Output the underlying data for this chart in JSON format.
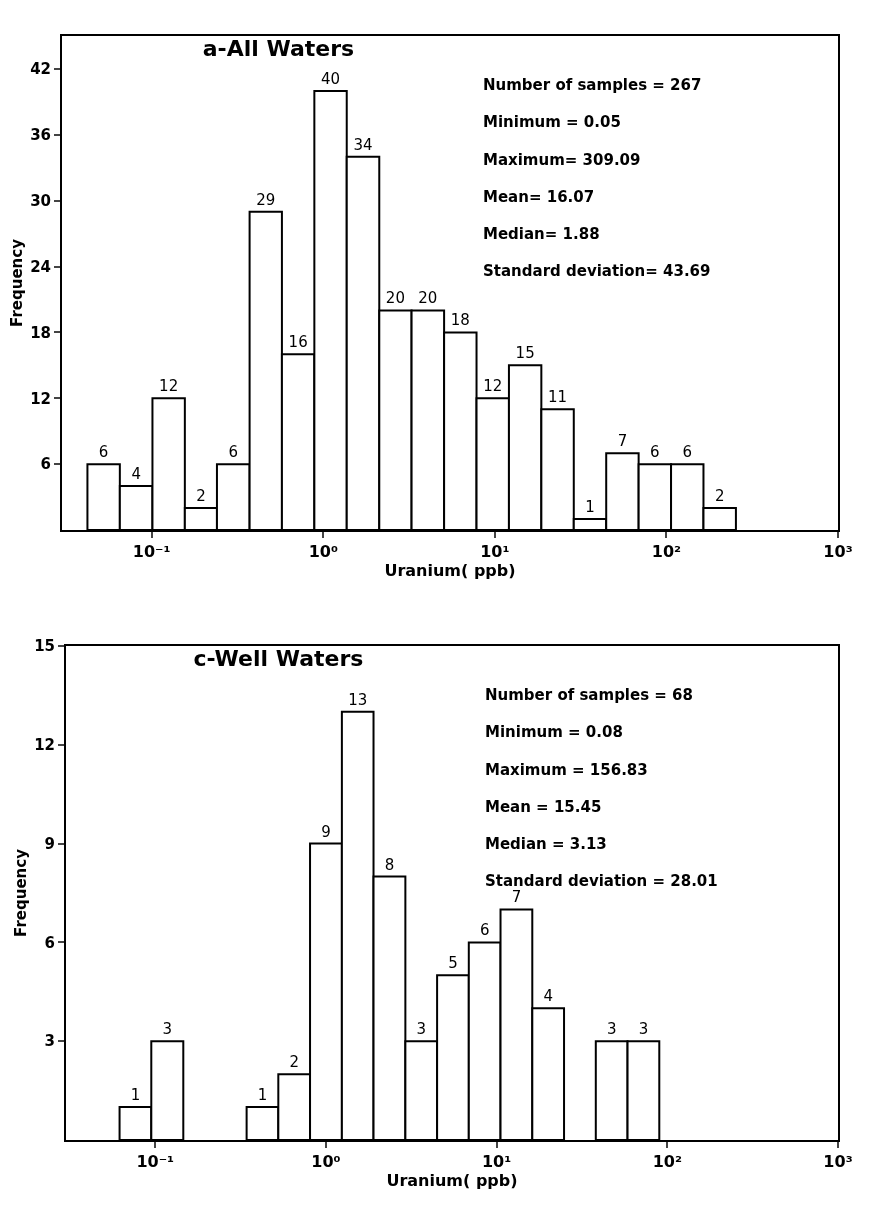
{
  "chart_data": [
    {
      "type": "histogram",
      "title": "a-All Waters",
      "xlabel": "Uranium( ppb)",
      "ylabel": "Frequency",
      "log": "x",
      "color": "#ffffff",
      "bins": [
        0.0422,
        0.0652,
        0.101,
        0.156,
        0.24,
        0.372,
        0.574,
        0.887,
        1.37,
        2.12,
        3.27,
        5.06,
        7.82,
        12.08,
        18.66,
        28.84,
        44.57,
        68.87,
        106.4,
        164.4,
        254.1
      ],
      "values": [
        6,
        4,
        12,
        2,
        6,
        29,
        16,
        40,
        34,
        20,
        20,
        18,
        12,
        15,
        11,
        1,
        7,
        6,
        6,
        2
      ],
      "data_labels": true,
      "xlim": [
        0.03,
        1000
      ],
      "ylim": [
        0,
        45
      ],
      "xticks": [
        {
          "value": 0.1,
          "label": "10⁻¹"
        },
        {
          "value": 1,
          "label": "10⁰"
        },
        {
          "value": 10,
          "label": "10¹"
        },
        {
          "value": 100,
          "label": "10²"
        },
        {
          "value": 1000,
          "label": "10³"
        }
      ],
      "yticks": [
        6,
        12,
        18,
        24,
        30,
        36,
        42
      ],
      "annotations": [
        "Number of samples = 267",
        "Minimum = 0.05",
        "Maximum= 309.09",
        "Mean= 16.07",
        "Median= 1.88",
        "Standard deviation= 43.69"
      ]
    },
    {
      "type": "histogram",
      "title": "c-Well Waters",
      "xlabel": "Uranium( ppb)",
      "ylabel": "Frequency",
      "log": "x",
      "color": "#ffffff",
      "bins": [
        0.0618,
        0.0948,
        0.146,
        0.223,
        0.343,
        0.526,
        0.807,
        1.24,
        1.9,
        2.92,
        4.48,
        6.87,
        10.54,
        16.18,
        24.83,
        38.11,
        58.48,
        89.74
      ],
      "values": [
        1,
        3,
        null,
        null,
        1,
        2,
        9,
        13,
        8,
        3,
        5,
        6,
        7,
        4,
        null,
        3,
        3
      ],
      "value_labels": [
        "1",
        "3",
        null,
        null,
        "1",
        "2",
        "9",
        "13",
        "8",
        "3",
        "5",
        "6",
        "7",
        "4",
        null,
        "3",
        "3"
      ],
      "xlim": [
        0.03,
        1000
      ],
      "ylim": [
        0,
        15
      ],
      "xticks": [
        {
          "value": 0.1,
          "label": "10⁻¹"
        },
        {
          "value": 1,
          "label": "10⁰"
        },
        {
          "value": 10,
          "label": "10¹"
        },
        {
          "value": 100,
          "label": "10²"
        },
        {
          "value": 1000,
          "label": "10³"
        }
      ],
      "yticks": [
        3,
        6,
        9,
        12,
        15
      ],
      "annotations": [
        "Number of samples = 68",
        "Minimum = 0.08",
        "Maximum = 156.83",
        "Mean = 15.45",
        "Median = 3.13",
        "Standard deviation = 28.01"
      ]
    }
  ]
}
